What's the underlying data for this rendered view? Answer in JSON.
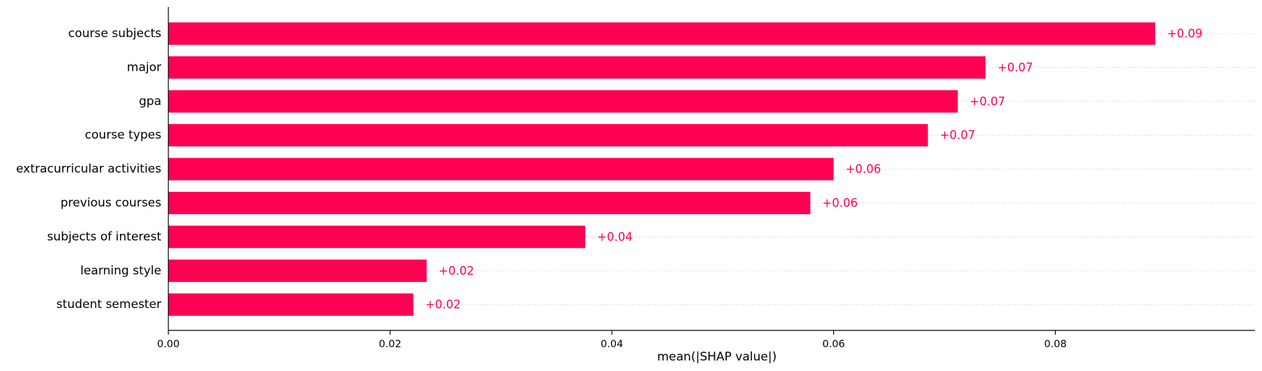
{
  "chart_data": {
    "type": "bar",
    "orientation": "horizontal",
    "title": "",
    "xlabel": "mean(|SHAP value|)",
    "ylabel": "",
    "xlim": [
      0,
      0.098
    ],
    "xticks": [
      0.0,
      0.02,
      0.04,
      0.06,
      0.08
    ],
    "xtick_labels": [
      "0.00",
      "0.02",
      "0.04",
      "0.06",
      "0.08"
    ],
    "categories": [
      "course subjects",
      "major",
      "gpa",
      "course types",
      "extracurricular activities",
      "previous courses",
      "subjects of interest",
      "learning style",
      "student semester"
    ],
    "values": [
      0.089,
      0.0737,
      0.0712,
      0.0685,
      0.06,
      0.0579,
      0.0376,
      0.0233,
      0.0221
    ],
    "value_labels": [
      "+0.09",
      "+0.07",
      "+0.07",
      "+0.07",
      "+0.06",
      "+0.06",
      "+0.04",
      "+0.02",
      "+0.02"
    ],
    "bar_color": "#ff0052",
    "label_color": "#ff0052",
    "grid": false,
    "row_guides": "dotted",
    "legend": "none"
  }
}
